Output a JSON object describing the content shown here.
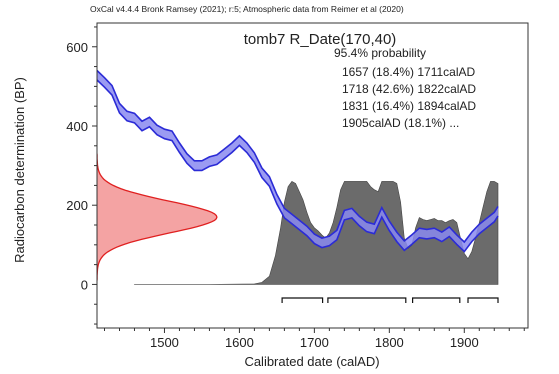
{
  "header": {
    "credit": "OxCal v4.4.4 Bronk Ramsey (2021); r:5; Atmospheric data from Reimer et al (2020)"
  },
  "chart_data": {
    "type": "area",
    "title": "tomb7 R_Date(170,40)",
    "probability_label": "95.4% probability",
    "ranges_text": [
      "1657 (18.4%) 1711calAD",
      "1718 (42.6%) 1822calAD",
      "1831 (16.4%) 1894calAD",
      "1905calAD (18.1%) ..."
    ],
    "xlabel": "Calibrated date (calAD)",
    "ylabel": "Radiocarbon determination (BP)",
    "xlim": [
      1410,
      1985
    ],
    "ylim": [
      -110,
      660
    ],
    "x_ticks": [
      1500,
      1600,
      1700,
      1800,
      1900
    ],
    "y_ticks": [
      0,
      200,
      400,
      600
    ],
    "colors": {
      "curve": "#2b2bd6",
      "curve_band": "#8a8af0",
      "radiocarbon_fill": "#f4a3a3",
      "radiocarbon_line": "#e02020",
      "posterior_fill": "#6b6b6b"
    },
    "calibration_curve": {
      "x": [
        1410,
        1420,
        1430,
        1440,
        1450,
        1460,
        1470,
        1480,
        1490,
        1500,
        1510,
        1520,
        1530,
        1540,
        1550,
        1560,
        1570,
        1580,
        1590,
        1600,
        1610,
        1620,
        1630,
        1640,
        1650,
        1660,
        1670,
        1680,
        1690,
        1700,
        1710,
        1720,
        1730,
        1740,
        1750,
        1760,
        1770,
        1780,
        1790,
        1800,
        1810,
        1820,
        1830,
        1840,
        1850,
        1860,
        1870,
        1880,
        1890,
        1900,
        1910,
        1920,
        1930,
        1940,
        1945
      ],
      "y": [
        528,
        510,
        490,
        445,
        425,
        420,
        400,
        410,
        390,
        380,
        375,
        345,
        318,
        300,
        300,
        310,
        315,
        330,
        345,
        363,
        345,
        320,
        282,
        260,
        215,
        180,
        165,
        150,
        135,
        115,
        105,
        110,
        125,
        175,
        180,
        160,
        145,
        140,
        182,
        148,
        120,
        98,
        113,
        130,
        127,
        130,
        120,
        133,
        113,
        95,
        120,
        140,
        155,
        170,
        185
      ],
      "band_halfwidth": 12
    },
    "radiocarbon_date": {
      "mean_bp": 170,
      "sigma_bp": 40,
      "peak_year": 1570
    },
    "posterior": {
      "x": [
        1460,
        1560,
        1620,
        1630,
        1640,
        1648,
        1655,
        1660,
        1665,
        1670,
        1675,
        1680,
        1685,
        1690,
        1695,
        1700,
        1705,
        1710,
        1715,
        1720,
        1725,
        1730,
        1735,
        1740,
        1745,
        1750,
        1755,
        1760,
        1765,
        1770,
        1775,
        1780,
        1785,
        1790,
        1795,
        1800,
        1805,
        1810,
        1815,
        1820,
        1825,
        1830,
        1835,
        1840,
        1845,
        1850,
        1855,
        1860,
        1865,
        1870,
        1875,
        1880,
        1885,
        1890,
        1895,
        1900,
        1905,
        1910,
        1915,
        1920,
        1925,
        1930,
        1935,
        1940,
        1945
      ],
      "y": [
        0,
        0,
        0.005,
        0.02,
        0.08,
        0.28,
        0.55,
        0.8,
        0.95,
        1.0,
        0.98,
        0.9,
        0.82,
        0.7,
        0.6,
        0.55,
        0.52,
        0.48,
        0.45,
        0.5,
        0.6,
        0.75,
        0.92,
        1.0,
        1.0,
        1.0,
        1.0,
        1.0,
        1.0,
        1.0,
        0.95,
        0.92,
        0.9,
        1.0,
        1.0,
        1.0,
        1.0,
        0.98,
        0.8,
        0.45,
        0.35,
        0.38,
        0.55,
        0.65,
        0.63,
        0.62,
        0.63,
        0.64,
        0.62,
        0.62,
        0.6,
        0.62,
        0.63,
        0.6,
        0.45,
        0.3,
        0.25,
        0.32,
        0.45,
        0.6,
        0.75,
        0.9,
        1.0,
        1.0,
        0.98
      ]
    },
    "range_bars": [
      {
        "from": 1657,
        "to": 1711
      },
      {
        "from": 1718,
        "to": 1822
      },
      {
        "from": 1831,
        "to": 1894
      },
      {
        "from": 1905,
        "to": 1945
      }
    ]
  }
}
